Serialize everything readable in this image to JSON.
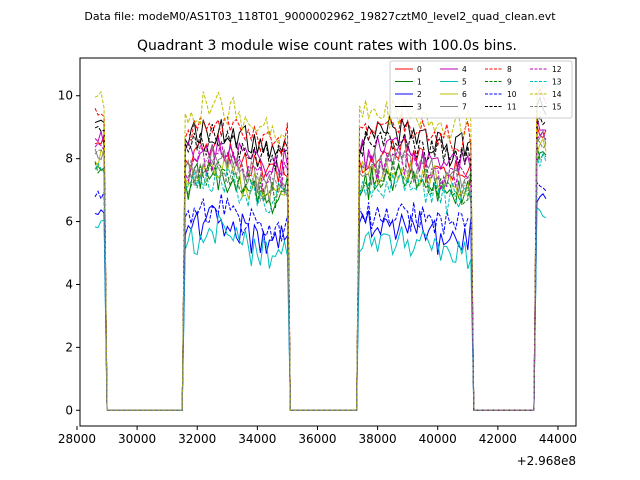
{
  "chart_data": {
    "type": "line",
    "suptitle": "Data file: modeM0/AS1T03_118T01_9000002962_19827cztM0_level2_quad_clean.evt",
    "title": "Quadrant 3 module wise count rates with 100.0s bins.",
    "xlabel": "",
    "ylabel": "",
    "x_offset_label": "+2.968e8",
    "xlim": [
      28100,
      44600
    ],
    "ylim": [
      -0.5,
      11.2
    ],
    "x_ticks": [
      28000,
      30000,
      32000,
      34000,
      36000,
      38000,
      40000,
      42000,
      44000
    ],
    "x_tick_labels": [
      "28000",
      "30000",
      "32000",
      "34000",
      "36000",
      "38000",
      "40000",
      "42000",
      "44000"
    ],
    "y_ticks": [
      0,
      2,
      4,
      6,
      8,
      10
    ],
    "y_tick_labels": [
      "0",
      "2",
      "4",
      "6",
      "8",
      "10"
    ],
    "bin_seconds": 100,
    "segments": [
      {
        "start": 28600,
        "end": 28900
      },
      {
        "start": 31600,
        "end": 35000
      },
      {
        "start": 37400,
        "end": 41150
      },
      {
        "start": 43250,
        "end": 43650
      }
    ],
    "gap_value": 0,
    "legend_position": "upper right",
    "series": [
      {
        "name": "0",
        "color": "#ff0000",
        "dash": "solid",
        "level": 7.9
      },
      {
        "name": "1",
        "color": "#008000",
        "dash": "solid",
        "level": 7.1
      },
      {
        "name": "2",
        "color": "#0000ff",
        "dash": "solid",
        "level": 5.7
      },
      {
        "name": "3",
        "color": "#000000",
        "dash": "solid",
        "level": 8.6
      },
      {
        "name": "4",
        "color": "#bf00bf",
        "dash": "solid",
        "level": 8.1
      },
      {
        "name": "5",
        "color": "#00bfbf",
        "dash": "solid",
        "level": 5.3
      },
      {
        "name": "6",
        "color": "#bfbf00",
        "dash": "solid",
        "level": 7.4
      },
      {
        "name": "7",
        "color": "#808080",
        "dash": "solid",
        "level": 7.6
      },
      {
        "name": "8",
        "color": "#ff0000",
        "dash": "dashed",
        "level": 8.9
      },
      {
        "name": "9",
        "color": "#008000",
        "dash": "dashed",
        "level": 7.2
      },
      {
        "name": "10",
        "color": "#0000ff",
        "dash": "dashed",
        "level": 6.1
      },
      {
        "name": "11",
        "color": "#000000",
        "dash": "dashed",
        "level": 8.3
      },
      {
        "name": "12",
        "color": "#bf00bf",
        "dash": "dashed",
        "level": 7.7
      },
      {
        "name": "13",
        "color": "#00bfbf",
        "dash": "dashed",
        "level": 7.0
      },
      {
        "name": "14",
        "color": "#bfbf00",
        "dash": "dashed",
        "level": 9.3
      },
      {
        "name": "15",
        "color": "#808080",
        "dash": "dashed",
        "level": 7.5
      }
    ]
  }
}
